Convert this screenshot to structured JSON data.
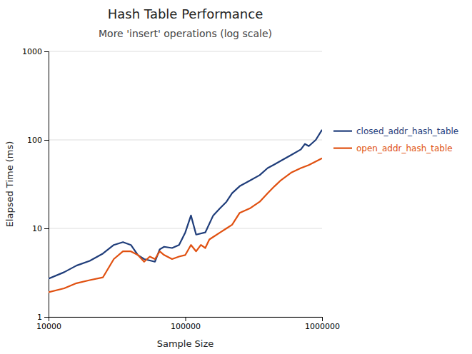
{
  "chart_data": {
    "type": "line",
    "title": "Hash Table Performance",
    "subtitle": "More 'insert' operations (log scale)",
    "xlabel": "Sample Size",
    "ylabel": "Elapsed Time (ms)",
    "log": true,
    "grid": true,
    "legend": "right",
    "xlim": [
      10000,
      1000000
    ],
    "ylim": [
      1,
      1000
    ],
    "xticks": [
      10000,
      100000,
      1000000
    ],
    "yticks": [
      1,
      10,
      100,
      1000
    ],
    "series": [
      {
        "name": "closed_addr_hash_table",
        "color": "#1f3d7a",
        "x": [
          10000,
          13000,
          16000,
          20000,
          25000,
          30000,
          35000,
          40000,
          45000,
          50000,
          60000,
          65000,
          70000,
          80000,
          90000,
          100000,
          110000,
          120000,
          140000,
          160000,
          180000,
          200000,
          220000,
          250000,
          300000,
          350000,
          400000,
          450000,
          500000,
          600000,
          700000,
          750000,
          800000,
          900000,
          1000000
        ],
        "values": [
          2.7,
          3.2,
          3.8,
          4.3,
          5.2,
          6.5,
          7.0,
          6.5,
          5.0,
          4.5,
          4.2,
          5.8,
          6.2,
          6.0,
          6.5,
          9.0,
          14.0,
          8.5,
          9.0,
          14.0,
          17.0,
          20.0,
          25.0,
          30.0,
          35.0,
          40.0,
          48.0,
          53.0,
          58.0,
          68.0,
          78.0,
          90.0,
          85.0,
          100.0,
          130.0
        ]
      },
      {
        "name": "open_addr_hash_table",
        "color": "#e05010",
        "x": [
          10000,
          13000,
          16000,
          20000,
          25000,
          30000,
          35000,
          40000,
          45000,
          50000,
          55000,
          60000,
          65000,
          70000,
          80000,
          90000,
          100000,
          110000,
          120000,
          130000,
          140000,
          150000,
          160000,
          180000,
          200000,
          220000,
          250000,
          300000,
          350000,
          400000,
          450000,
          500000,
          600000,
          700000,
          800000,
          900000,
          1000000
        ],
        "values": [
          1.9,
          2.1,
          2.4,
          2.6,
          2.8,
          4.5,
          5.5,
          5.5,
          5.0,
          4.2,
          4.8,
          4.5,
          5.5,
          5.0,
          4.5,
          4.8,
          5.0,
          6.5,
          5.5,
          6.5,
          6.0,
          7.5,
          8.0,
          9.0,
          10.0,
          11.0,
          15.0,
          17.0,
          20.0,
          25.0,
          30.0,
          35.0,
          43.0,
          48.0,
          52.0,
          57.0,
          62.0
        ]
      }
    ]
  }
}
